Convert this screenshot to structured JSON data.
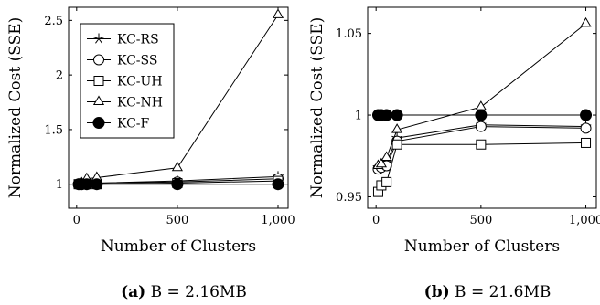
{
  "chart_data": [
    {
      "type": "line",
      "caption_prefix": "(a)",
      "caption_text": "B = 2.16MB",
      "xlabel": "Number of Clusters",
      "ylabel": "Normalized Cost (SSE)",
      "xlim": [
        -40,
        1050
      ],
      "ylim": [
        0.78,
        2.62
      ],
      "xticks": [
        0,
        500,
        1000
      ],
      "xtick_labels": [
        "0",
        "500",
        "1,000"
      ],
      "yticks": [
        1,
        1.5,
        2,
        2.5
      ],
      "ytick_labels": [
        "1",
        "1.5",
        "2",
        "2.5"
      ],
      "grid": false,
      "legend_position": "top-left",
      "x": [
        10,
        25,
        50,
        100,
        500,
        1000
      ],
      "series": [
        {
          "name": "KC-RS",
          "marker": "star",
          "values": [
            1.0,
            1.0,
            1.02,
            1.01,
            1.03,
            1.07
          ]
        },
        {
          "name": "KC-SS",
          "marker": "circle",
          "values": [
            1.0,
            1.0,
            1.01,
            1.01,
            1.02,
            1.05
          ]
        },
        {
          "name": "KC-UH",
          "marker": "square",
          "values": [
            1.0,
            1.0,
            1.0,
            1.0,
            1.01,
            1.03
          ]
        },
        {
          "name": "KC-NH",
          "marker": "triangle",
          "values": [
            1.0,
            1.01,
            1.05,
            1.06,
            1.15,
            2.55
          ]
        },
        {
          "name": "KC-F",
          "marker": "filled-circle",
          "values": [
            1.0,
            1.0,
            1.0,
            1.0,
            1.0,
            1.0
          ]
        }
      ]
    },
    {
      "type": "line",
      "caption_prefix": "(b)",
      "caption_text": "B = 21.6MB",
      "xlabel": "Number of Clusters",
      "ylabel": "Normalized Cost (SSE)",
      "xlim": [
        -40,
        1050
      ],
      "ylim": [
        0.943,
        1.066
      ],
      "xticks": [
        0,
        500,
        1000
      ],
      "xtick_labels": [
        "0",
        "500",
        "1,000"
      ],
      "yticks": [
        0.95,
        1,
        1.05
      ],
      "ytick_labels": [
        "0.95",
        "1",
        "1.05"
      ],
      "grid": false,
      "x": [
        10,
        25,
        50,
        100,
        500,
        1000
      ],
      "series": [
        {
          "name": "KC-RS",
          "marker": "star",
          "values": [
            0.968,
            0.969,
            0.971,
            0.986,
            0.994,
            0.993
          ]
        },
        {
          "name": "KC-SS",
          "marker": "circle",
          "values": [
            0.967,
            0.968,
            0.969,
            0.984,
            0.993,
            0.992
          ]
        },
        {
          "name": "KC-UH",
          "marker": "square",
          "values": [
            0.953,
            0.957,
            0.959,
            0.982,
            0.982,
            0.983
          ]
        },
        {
          "name": "KC-NH",
          "marker": "triangle",
          "values": [
            0.969,
            0.97,
            0.974,
            0.991,
            1.005,
            1.056
          ]
        },
        {
          "name": "KC-F",
          "marker": "filled-circle",
          "values": [
            1.0,
            1.0,
            1.0,
            1.0,
            1.0,
            1.0
          ]
        }
      ]
    }
  ]
}
